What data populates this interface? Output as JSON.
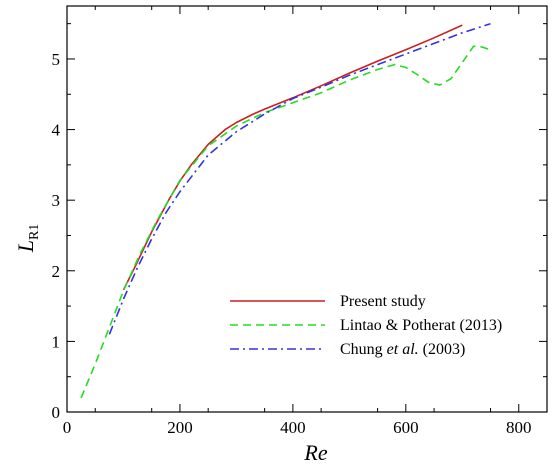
{
  "chart_data": {
    "type": "line",
    "xlabel": "Re",
    "ylabel_main": "L",
    "ylabel_sub": "R1",
    "xlim": [
      0,
      850
    ],
    "ylim": [
      0,
      5.75
    ],
    "xticks": [
      0,
      200,
      400,
      600,
      800
    ],
    "yticks": [
      0,
      1,
      2,
      3,
      4,
      5
    ],
    "grid": false,
    "legend_position": "bottom-right",
    "series": [
      {
        "name": "Present study",
        "color": "#cc1f1f",
        "dash": "solid",
        "x": [
          100,
          120,
          150,
          180,
          200,
          220,
          250,
          280,
          300,
          330,
          350,
          400,
          450,
          500,
          550,
          600,
          650,
          700
        ],
        "y": [
          1.73,
          2.05,
          2.55,
          3.0,
          3.27,
          3.5,
          3.79,
          4.0,
          4.1,
          4.22,
          4.29,
          4.45,
          4.62,
          4.8,
          4.97,
          5.13,
          5.3,
          5.48
        ]
      },
      {
        "name": "Lintao & Potherat (2013)",
        "color": "#22dd22",
        "dash": "dashed",
        "x": [
          25,
          50,
          75,
          100,
          130,
          160,
          200,
          250,
          300,
          350,
          400,
          450,
          500,
          550,
          580,
          600,
          620,
          640,
          660,
          680,
          700,
          720,
          735,
          750
        ],
        "y": [
          0.2,
          0.68,
          1.2,
          1.72,
          2.25,
          2.72,
          3.28,
          3.77,
          4.05,
          4.24,
          4.38,
          4.52,
          4.7,
          4.85,
          4.92,
          4.88,
          4.78,
          4.67,
          4.63,
          4.72,
          4.95,
          5.18,
          5.17,
          5.13
        ]
      },
      {
        "name": "Chung et al. (2003)",
        "name_parts": [
          "Chung ",
          "et al.",
          " (2003)"
        ],
        "color": "#3333dd",
        "dash": "dashdot",
        "x": [
          75,
          100,
          125,
          150,
          175,
          200,
          250,
          300,
          350,
          400,
          450,
          500,
          550,
          600,
          650,
          700,
          750
        ],
        "y": [
          1.1,
          1.6,
          2.05,
          2.45,
          2.82,
          3.12,
          3.64,
          3.97,
          4.22,
          4.44,
          4.6,
          4.77,
          4.92,
          5.07,
          5.22,
          5.37,
          5.5
        ]
      }
    ]
  }
}
